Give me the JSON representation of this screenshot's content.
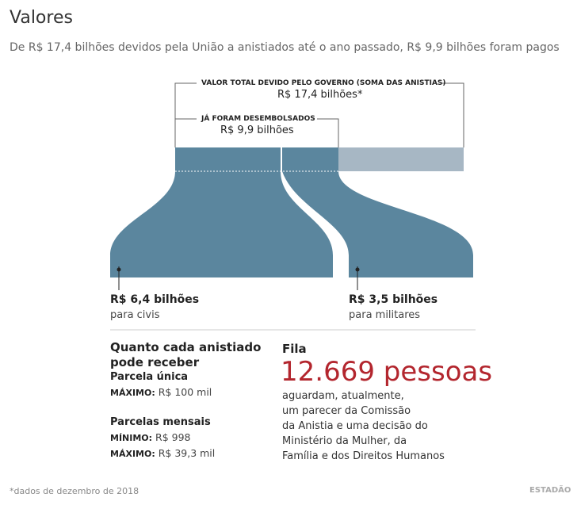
{
  "header": {
    "title": "Valores",
    "subtitle": "De R$ 17,4 bilhões devidos pela União a anistiados até o ano passado, R$ 9,9 bilhões foram pagos"
  },
  "flow": {
    "total_label": "VALOR TOTAL DEVIDO PELO GOVERNO (SOMA DAS ANISTIAS)",
    "total_value": "R$ 17,4 bilhões*",
    "paid_label": "JÁ FORAM DESEMBOLSADOS",
    "paid_value": "R$ 9,9 bilhões",
    "civil_value": "R$ 6,4 bilhões",
    "civil_label": "para civis",
    "military_value": "R$ 3,5 bilhões",
    "military_label": "para militares"
  },
  "payments": {
    "title_lines": [
      "Quanto cada anistiado",
      "pode receber"
    ],
    "single_title": "Parcela única",
    "single_max_key": "MÁXIMO:",
    "single_max_value": "R$ 100 mil",
    "monthly_title": "Parcelas mensais",
    "monthly_min_key": "MÍNIMO:",
    "monthly_min_value": "R$ 998",
    "monthly_max_key": "MÁXIMO:",
    "monthly_max_value": "R$ 39,3 mil"
  },
  "queue": {
    "title": "Fila",
    "number": "12.669 pessoas",
    "lines": [
      "aguardam, atualmente,",
      "um parecer da Comissão",
      "da Anistia e uma decisão do",
      "Ministério da Mulher, da",
      "Família e dos Direitos Humanos"
    ]
  },
  "footer": {
    "note": "*dados de dezembro de 2018",
    "brand": "ESTADÃO"
  }
}
